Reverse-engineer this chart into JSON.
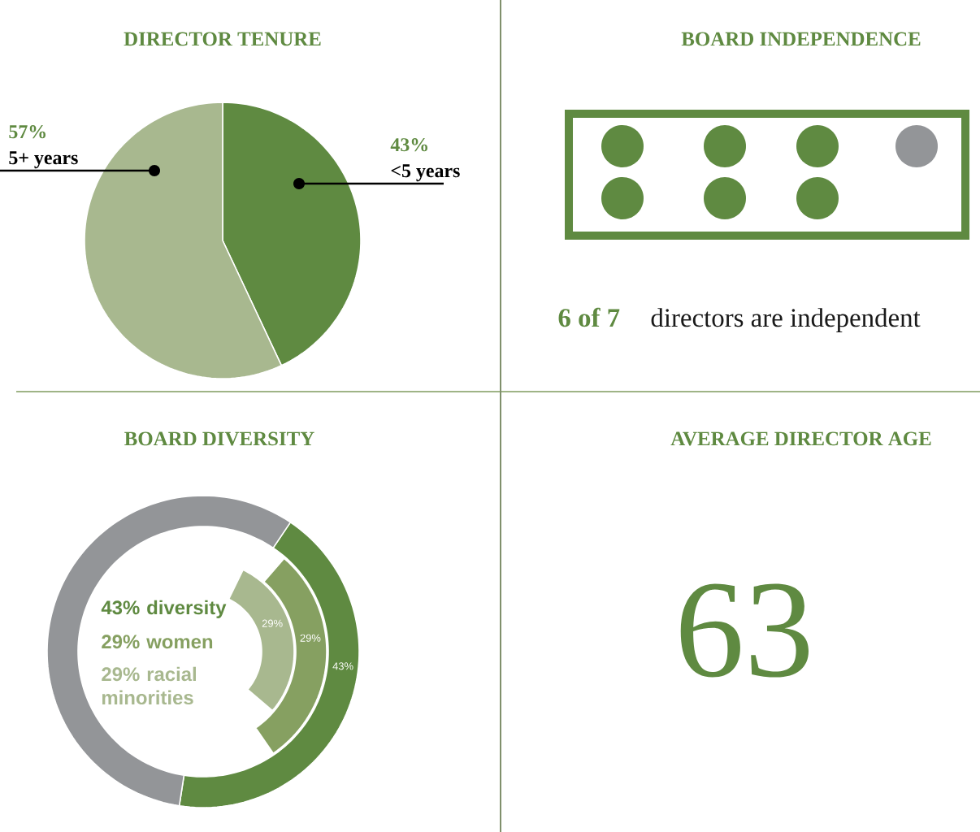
{
  "chart_data": [
    {
      "type": "pie",
      "title": "DIRECTOR TENURE",
      "categories": [
        "<5 years",
        "5+ years"
      ],
      "values": [
        43,
        57
      ],
      "colors": [
        "#5f8a41",
        "#a8b88f"
      ],
      "value_labels": [
        "43%",
        "57%"
      ]
    },
    {
      "type": "other",
      "title": "BOARD INDEPENDENCE",
      "annotations": [
        "6 of 7",
        "directors are independent"
      ]
    },
    {
      "type": "donut",
      "title": "BOARD DIVERSITY",
      "series": [
        {
          "name": "43% diversity",
          "colors": [
            "#5f8a41",
            "#939598"
          ],
          "values": [
            43,
            57
          ],
          "value_labels": [
            "43%",
            null
          ]
        },
        {
          "name": "29% women",
          "colors": [
            "#86a061"
          ],
          "values": [
            29
          ],
          "value_labels": [
            "29%"
          ]
        },
        {
          "name": "29% racial minorities",
          "colors": [
            "#a8b88f"
          ],
          "values": [
            29
          ],
          "value_labels": [
            "29%"
          ]
        }
      ]
    },
    {
      "type": "other",
      "title": "AVERAGE DIRECTOR AGE",
      "annotations": [
        "63"
      ]
    }
  ]
}
